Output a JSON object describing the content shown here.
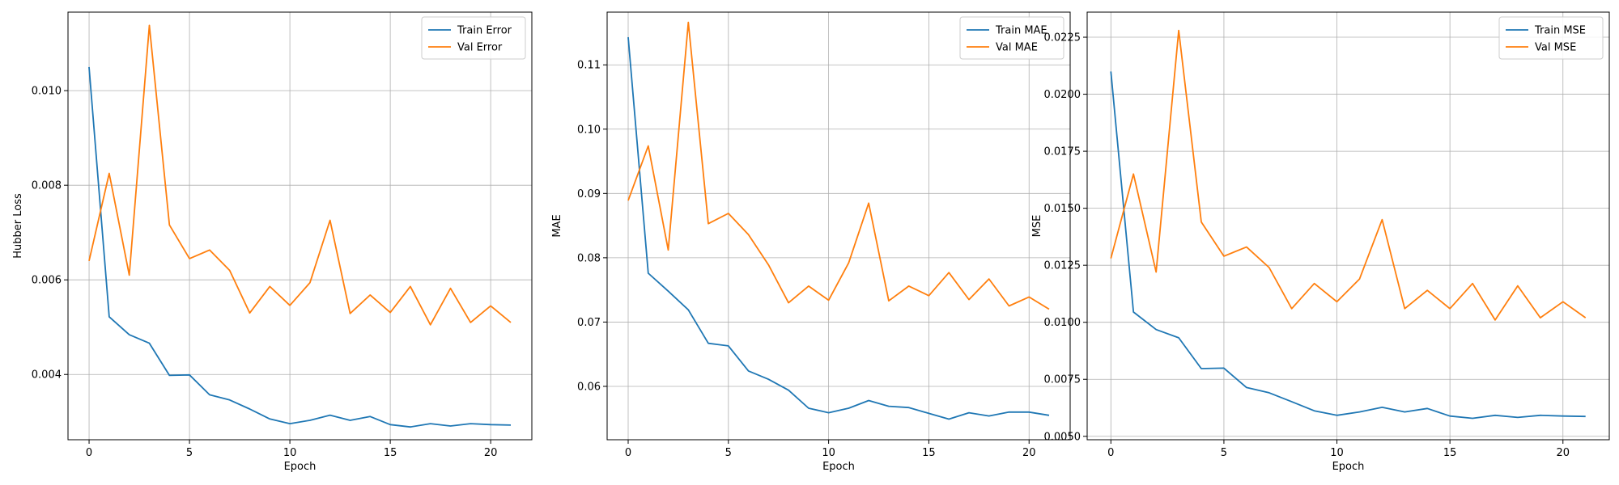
{
  "chart_data": [
    {
      "type": "line",
      "xlabel": "Epoch",
      "ylabel": "Hubber Loss",
      "xlim": [
        -1.05,
        22.05
      ],
      "ylim": [
        0.00262,
        0.01166
      ],
      "xticks": [
        0,
        5,
        10,
        15,
        20
      ],
      "xtick_labels": [
        "0",
        "5",
        "10",
        "15",
        "20"
      ],
      "yticks": [
        0.004,
        0.006,
        0.008,
        0.01
      ],
      "ytick_labels": [
        "0.004",
        "0.006",
        "0.008",
        "0.010"
      ],
      "grid": true,
      "legend_position": "top-right",
      "x": [
        0,
        1,
        2,
        3,
        4,
        5,
        6,
        7,
        8,
        9,
        10,
        11,
        12,
        13,
        14,
        15,
        16,
        17,
        18,
        19,
        20,
        21
      ],
      "series": [
        {
          "name": "Train Error",
          "color": "#1f77b4",
          "values": [
            0.0105,
            0.00522,
            0.00484,
            0.00466,
            0.00398,
            0.00399,
            0.00357,
            0.00346,
            0.00327,
            0.00306,
            0.00296,
            0.00303,
            0.00314,
            0.00303,
            0.00311,
            0.00294,
            0.00289,
            0.00296,
            0.00291,
            0.00296,
            0.00294,
            0.00293
          ]
        },
        {
          "name": "Val Error",
          "color": "#ff7f0e",
          "values": [
            0.0064,
            0.00825,
            0.0061,
            0.01138,
            0.00716,
            0.00645,
            0.00663,
            0.0062,
            0.0053,
            0.00586,
            0.00546,
            0.00594,
            0.00726,
            0.00529,
            0.00568,
            0.00531,
            0.00586,
            0.00505,
            0.00582,
            0.0051,
            0.00545,
            0.0051
          ]
        }
      ]
    },
    {
      "type": "line",
      "xlabel": "Epoch",
      "ylabel": "MAE",
      "xlim": [
        -1.05,
        22.05
      ],
      "ylim": [
        0.0517,
        0.1182
      ],
      "xticks": [
        0,
        5,
        10,
        15,
        20
      ],
      "xtick_labels": [
        "0",
        "5",
        "10",
        "15",
        "20"
      ],
      "yticks": [
        0.06,
        0.07,
        0.08,
        0.09,
        0.1,
        0.11
      ],
      "ytick_labels": [
        "0.06",
        "0.07",
        "0.08",
        "0.09",
        "0.10",
        "0.11"
      ],
      "grid": true,
      "legend_position": "top-right",
      "x": [
        0,
        1,
        2,
        3,
        4,
        5,
        6,
        7,
        8,
        9,
        10,
        11,
        12,
        13,
        14,
        15,
        16,
        17,
        18,
        19,
        20,
        21
      ],
      "series": [
        {
          "name": "Train MAE",
          "color": "#1f77b4",
          "values": [
            0.1143,
            0.0776,
            0.0748,
            0.0719,
            0.0667,
            0.0663,
            0.0624,
            0.0611,
            0.0594,
            0.0566,
            0.0559,
            0.0566,
            0.0578,
            0.0569,
            0.0567,
            0.0558,
            0.0549,
            0.0559,
            0.0554,
            0.056,
            0.056,
            0.0555
          ]
        },
        {
          "name": "Val MAE",
          "color": "#ff7f0e",
          "values": [
            0.0889,
            0.0974,
            0.0812,
            0.1166,
            0.0853,
            0.0869,
            0.0836,
            0.0789,
            0.073,
            0.0756,
            0.0734,
            0.0792,
            0.0885,
            0.0733,
            0.0756,
            0.0741,
            0.0777,
            0.0735,
            0.0767,
            0.0725,
            0.0739,
            0.072
          ]
        }
      ]
    },
    {
      "type": "line",
      "xlabel": "Epoch",
      "ylabel": "MSE",
      "xlim": [
        -1.05,
        22.05
      ],
      "ylim": [
        0.00485,
        0.0236
      ],
      "xticks": [
        0,
        5,
        10,
        15,
        20
      ],
      "xtick_labels": [
        "0",
        "5",
        "10",
        "15",
        "20"
      ],
      "yticks": [
        0.005,
        0.0075,
        0.01,
        0.0125,
        0.015,
        0.0175,
        0.02,
        0.0225
      ],
      "ytick_labels": [
        "0.0050",
        "0.0075",
        "0.0100",
        "0.0125",
        "0.0150",
        "0.0175",
        "0.0200",
        "0.0225"
      ],
      "grid": true,
      "legend_position": "top-right",
      "x": [
        0,
        1,
        2,
        3,
        4,
        5,
        6,
        7,
        8,
        9,
        10,
        11,
        12,
        13,
        14,
        15,
        16,
        17,
        18,
        19,
        20,
        21
      ],
      "series": [
        {
          "name": "Train MSE",
          "color": "#1f77b4",
          "values": [
            0.021,
            0.01045,
            0.00968,
            0.00932,
            0.00797,
            0.00799,
            0.00714,
            0.00691,
            0.00652,
            0.00612,
            0.00592,
            0.00607,
            0.00627,
            0.00607,
            0.00622,
            0.00589,
            0.00579,
            0.00592,
            0.00583,
            0.00592,
            0.00589,
            0.00587
          ]
        },
        {
          "name": "Val MSE",
          "color": "#ff7f0e",
          "values": [
            0.0128,
            0.0165,
            0.0122,
            0.0228,
            0.0144,
            0.0129,
            0.0133,
            0.0124,
            0.0106,
            0.0117,
            0.0109,
            0.0119,
            0.0145,
            0.0106,
            0.0114,
            0.0106,
            0.0117,
            0.0101,
            0.0116,
            0.0102,
            0.0109,
            0.0102
          ]
        }
      ]
    }
  ]
}
